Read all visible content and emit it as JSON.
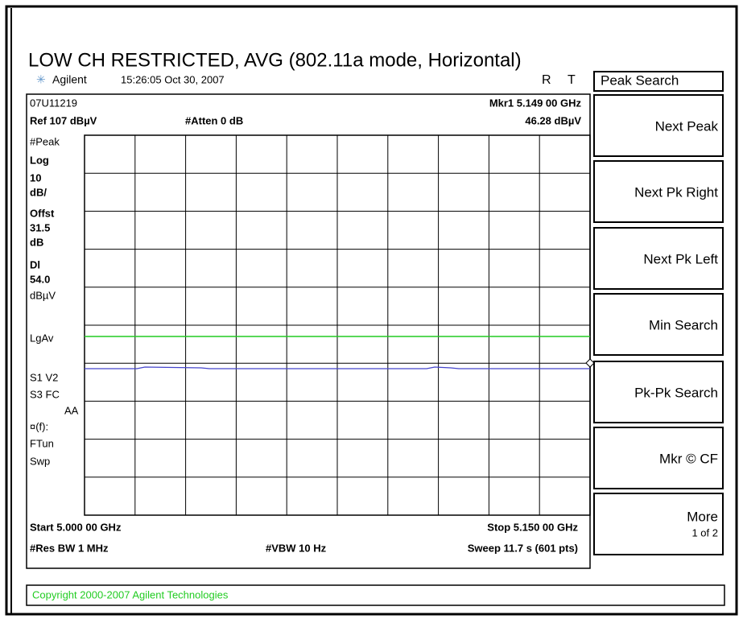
{
  "title": "LOW CH RESTRICTED, AVG (802.11a mode, Horizontal)",
  "header": {
    "brand": "Agilent",
    "timestamp": "15:26:05  Oct 30, 2007",
    "flag_r": "R",
    "flag_t": "T"
  },
  "menu_title": "Peak Search",
  "screen": {
    "id": "07U11219",
    "ref": "Ref 107 dBµV",
    "atten": "#Atten 0 dB",
    "marker": "Mkr1  5.149 00 GHz",
    "marker_level": "46.28 dBµV",
    "side_labels": [
      "#Peak",
      "Log",
      "10",
      "dB/",
      "Offst",
      "31.5",
      "dB",
      "Dl",
      "54.0",
      "dBµV",
      "LgAv",
      "S1  V2",
      "S3  FC",
      "AA",
      "¤(f):",
      "FTun",
      "Swp"
    ],
    "start": "Start 5.000 00 GHz",
    "stop": "Stop 5.150 00 GHz",
    "rbw": "#Res BW 1 MHz",
    "vbw": "#VBW 10 Hz",
    "sweep": "Sweep 11.7 s (601 pts)"
  },
  "softkeys": [
    [
      "Next Peak"
    ],
    [
      "Next Pk Right"
    ],
    [
      "Next Pk Left"
    ],
    [
      "Min Search"
    ],
    [
      "Pk-Pk Search"
    ],
    [
      "Mkr © CF"
    ],
    [
      "More",
      "1 of 2"
    ]
  ],
  "copyright": "Copyright 2000-2007 Agilent Technologies"
}
